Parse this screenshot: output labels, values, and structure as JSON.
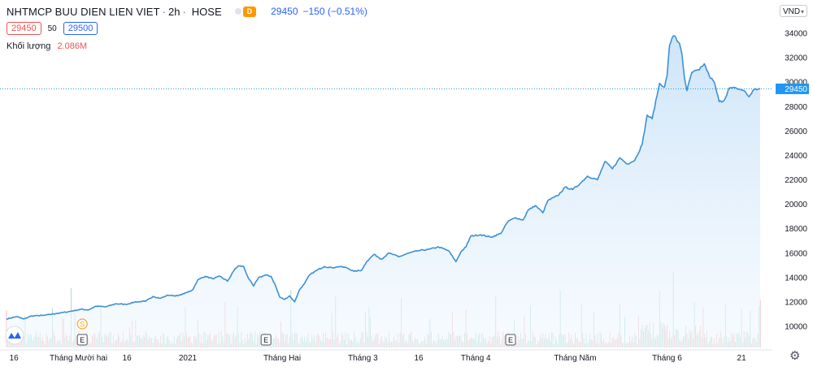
{
  "header": {
    "symbol_title": "NHTMCP BUU DIEN LIEN VIET",
    "separator": "·",
    "timeframe": "2h",
    "exchange": "HOSE",
    "badge": "D",
    "last_price": "29450",
    "change": "−150 (−0.51%)"
  },
  "quote": {
    "bid": "29450",
    "spread": "50",
    "ask": "29500"
  },
  "volume_legend": {
    "label": "Khối lượng",
    "value": "2.086M"
  },
  "currency": {
    "label": "VND",
    "caret": "▾"
  },
  "settings_icon": {
    "glyph": "⚙"
  },
  "colors": {
    "line": "#3c90d6",
    "area_top": "#c9e2f8",
    "area_bottom": "#f2f8fe",
    "vol_up": "#8fd2c2",
    "vol_down": "#f0a2a0",
    "price_label_bg": "#2196f3",
    "last_price_line": "#2196f3",
    "axis_text": "#131722"
  },
  "icons": {
    "logo": "wave-logo-icon",
    "dividend": "dividend-icon",
    "earnings": "earnings-icon"
  },
  "markers": {
    "dividend": {
      "label": "S",
      "index": 61
    },
    "earnings": [
      {
        "label": "E",
        "index": 61
      },
      {
        "label": "E",
        "index": 209
      },
      {
        "label": "E",
        "index": 406
      }
    ]
  },
  "chart_data": {
    "type": "area",
    "series_kind": "line",
    "ylim": [
      9000,
      35500
    ],
    "y_ticks": [
      10000,
      12000,
      14000,
      16000,
      18000,
      20000,
      22000,
      24000,
      26000,
      28000,
      30000,
      32000,
      34000
    ],
    "last_price_label": "29450",
    "last_price": 29450,
    "x_ticks": [
      {
        "label": "16",
        "index": 6
      },
      {
        "label": "Tháng Mười hai",
        "index": 58
      },
      {
        "label": "16",
        "index": 97
      },
      {
        "label": "2021",
        "index": 146
      },
      {
        "label": "Tháng Hai",
        "index": 222
      },
      {
        "label": "Tháng 3",
        "index": 287
      },
      {
        "label": "16",
        "index": 332
      },
      {
        "label": "Tháng 4",
        "index": 378
      },
      {
        "label": "Tháng Năm",
        "index": 458
      },
      {
        "label": "Tháng 6",
        "index": 532
      },
      {
        "label": "21",
        "index": 592
      }
    ],
    "x_count": 608,
    "anchors": [
      [
        0,
        10600
      ],
      [
        8,
        10800
      ],
      [
        14,
        10600
      ],
      [
        20,
        10850
      ],
      [
        30,
        10900
      ],
      [
        40,
        11050
      ],
      [
        50,
        11200
      ],
      [
        60,
        11400
      ],
      [
        66,
        11350
      ],
      [
        72,
        11650
      ],
      [
        80,
        11600
      ],
      [
        88,
        11850
      ],
      [
        96,
        11800
      ],
      [
        104,
        12000
      ],
      [
        112,
        12050
      ],
      [
        118,
        12450
      ],
      [
        124,
        12300
      ],
      [
        130,
        12550
      ],
      [
        138,
        12500
      ],
      [
        146,
        12800
      ],
      [
        150,
        13000
      ],
      [
        154,
        13800
      ],
      [
        160,
        14100
      ],
      [
        166,
        13900
      ],
      [
        172,
        14100
      ],
      [
        178,
        13700
      ],
      [
        184,
        14700
      ],
      [
        187,
        14950
      ],
      [
        191,
        14900
      ],
      [
        195,
        13900
      ],
      [
        199,
        13300
      ],
      [
        203,
        14000
      ],
      [
        209,
        14200
      ],
      [
        213,
        14100
      ],
      [
        216,
        13500
      ],
      [
        220,
        12400
      ],
      [
        224,
        12200
      ],
      [
        228,
        12500
      ],
      [
        232,
        12000
      ],
      [
        236,
        13000
      ],
      [
        240,
        13500
      ],
      [
        244,
        14200
      ],
      [
        250,
        14600
      ],
      [
        256,
        14900
      ],
      [
        262,
        14800
      ],
      [
        268,
        14900
      ],
      [
        274,
        14800
      ],
      [
        280,
        14500
      ],
      [
        286,
        14600
      ],
      [
        290,
        15300
      ],
      [
        296,
        15900
      ],
      [
        302,
        15500
      ],
      [
        308,
        16000
      ],
      [
        316,
        15700
      ],
      [
        324,
        16000
      ],
      [
        332,
        16200
      ],
      [
        340,
        16300
      ],
      [
        348,
        16500
      ],
      [
        356,
        16200
      ],
      [
        362,
        15300
      ],
      [
        366,
        16100
      ],
      [
        370,
        16500
      ],
      [
        374,
        17400
      ],
      [
        382,
        17500
      ],
      [
        390,
        17300
      ],
      [
        398,
        17600
      ],
      [
        404,
        18600
      ],
      [
        410,
        18900
      ],
      [
        416,
        18700
      ],
      [
        420,
        19500
      ],
      [
        426,
        19900
      ],
      [
        432,
        19300
      ],
      [
        436,
        20300
      ],
      [
        444,
        20700
      ],
      [
        450,
        21400
      ],
      [
        456,
        21200
      ],
      [
        462,
        21700
      ],
      [
        468,
        22300
      ],
      [
        476,
        22000
      ],
      [
        482,
        23500
      ],
      [
        488,
        22900
      ],
      [
        494,
        23800
      ],
      [
        500,
        23300
      ],
      [
        506,
        23600
      ],
      [
        512,
        24900
      ],
      [
        516,
        27300
      ],
      [
        520,
        27000
      ],
      [
        526,
        29900
      ],
      [
        530,
        29600
      ],
      [
        532,
        30500
      ],
      [
        534,
        33000
      ],
      [
        536,
        33600
      ],
      [
        538,
        33800
      ],
      [
        540,
        33400
      ],
      [
        542,
        33200
      ],
      [
        544,
        32300
      ],
      [
        546,
        30400
      ],
      [
        548,
        29300
      ],
      [
        552,
        30800
      ],
      [
        558,
        31000
      ],
      [
        562,
        31500
      ],
      [
        566,
        30500
      ],
      [
        570,
        30000
      ],
      [
        574,
        28400
      ],
      [
        578,
        28500
      ],
      [
        582,
        29500
      ],
      [
        588,
        29500
      ],
      [
        594,
        29300
      ],
      [
        598,
        28800
      ],
      [
        602,
        29400
      ],
      [
        606,
        29450
      ]
    ]
  }
}
